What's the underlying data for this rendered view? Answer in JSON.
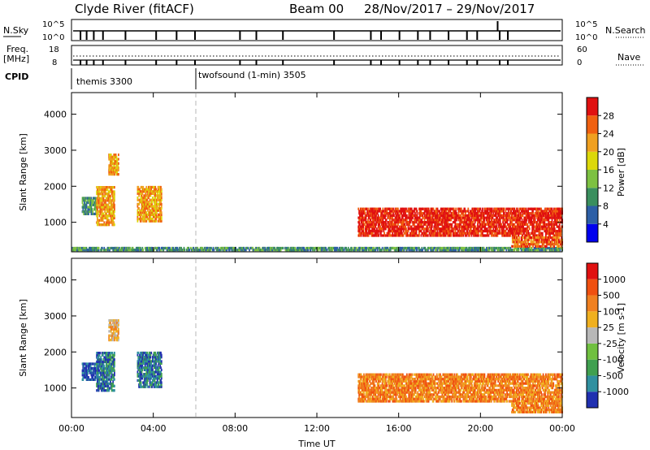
{
  "header": {
    "station": "Clyde River (fitACF)",
    "beam": "Beam 00",
    "date_range": "28/Nov/2017 – 29/Nov/2017"
  },
  "status_panel": {
    "nsky_label": "N.Sky",
    "nsky_tick_top": "10^5",
    "nsky_tick_bottom": "10^0",
    "nsearch_label": "N.Search",
    "nsearch_tick_top": "10^5",
    "nsearch_tick_bottom": "10^0",
    "freq_label": "Freq.",
    "freq_unit": "[MHz]",
    "freq_tick_top": "18",
    "freq_tick_bottom": "8",
    "nave_label": "Nave",
    "nave_tick_top": "60",
    "nave_tick_bottom": "0",
    "cpid_label": "CPID",
    "modes": [
      {
        "name": "themis 3300",
        "start_hour": 0
      },
      {
        "name": "twofsound (1-min) 3505",
        "start_hour": 6
      }
    ]
  },
  "chart_data": [
    {
      "type": "heatmap",
      "quantity": "Power",
      "colorbar_label": "Power [dB]",
      "colorbar_ticks": [
        "4",
        "8",
        "12",
        "16",
        "20",
        "24",
        "28"
      ],
      "colors": [
        "#0000ee",
        "#2d5fa6",
        "#3a8f5e",
        "#7dc142",
        "#dcd80a",
        "#f0a020",
        "#f06010",
        "#e01010"
      ],
      "ylabel": "Slant Range [km]",
      "ylim": [
        180,
        4600
      ],
      "yticks": [
        1000,
        2000,
        3000,
        4000
      ],
      "xlim": [
        0,
        24
      ],
      "xticks": [
        "00:00",
        "04:00",
        "08:00",
        "12:00",
        "16:00",
        "20:00",
        "00:00"
      ],
      "regions": [
        {
          "t0": 0.5,
          "t1": 1.3,
          "r0": 1200,
          "r1": 1700,
          "level": 2
        },
        {
          "t0": 1.2,
          "t1": 2.1,
          "r0": 900,
          "r1": 2000,
          "level": 5
        },
        {
          "t0": 1.8,
          "t1": 2.3,
          "r0": 2300,
          "r1": 2900,
          "level": 5
        },
        {
          "t0": 3.2,
          "t1": 4.4,
          "r0": 1000,
          "r1": 2000,
          "level": 5
        },
        {
          "t0": 0.0,
          "t1": 24.0,
          "r0": 200,
          "r1": 300,
          "level": 2
        },
        {
          "t0": 14.0,
          "t1": 24.0,
          "r0": 600,
          "r1": 1400,
          "level": 7
        },
        {
          "t0": 21.5,
          "t1": 24.0,
          "r0": 300,
          "r1": 600,
          "level": 6
        }
      ]
    },
    {
      "type": "heatmap",
      "quantity": "Velocity",
      "colorbar_label": "Velocity [m s-1]",
      "colorbar_ticks": [
        "1000",
        "500",
        "100",
        "25",
        "-25",
        "-100",
        "-500",
        "-1000"
      ],
      "colors": [
        "#2030b0",
        "#3090a0",
        "#40a050",
        "#70c040",
        "#b8b8b8",
        "#f0b020",
        "#f08020",
        "#f05010",
        "#e01010"
      ],
      "ylabel": "Slant Range [km]",
      "ylim": [
        180,
        4600
      ],
      "yticks": [
        1000,
        2000,
        3000,
        4000
      ],
      "xlim": [
        0,
        24
      ],
      "xticks": [
        "00:00",
        "04:00",
        "08:00",
        "12:00",
        "16:00",
        "20:00",
        "00:00"
      ],
      "xlabel": "Time UT",
      "regions": [
        {
          "t0": 0.5,
          "t1": 1.3,
          "r0": 1200,
          "r1": 1700,
          "level": 0
        },
        {
          "t0": 1.2,
          "t1": 2.1,
          "r0": 900,
          "r1": 2000,
          "level": 1
        },
        {
          "t0": 1.8,
          "t1": 2.3,
          "r0": 2300,
          "r1": 2900,
          "level": 5
        },
        {
          "t0": 3.2,
          "t1": 4.4,
          "r0": 1000,
          "r1": 2000,
          "level": 1
        },
        {
          "t0": 14.0,
          "t1": 24.0,
          "r0": 600,
          "r1": 1400,
          "level": 6
        },
        {
          "t0": 21.5,
          "t1": 24.0,
          "r0": 300,
          "r1": 600,
          "level": 6
        }
      ]
    }
  ]
}
